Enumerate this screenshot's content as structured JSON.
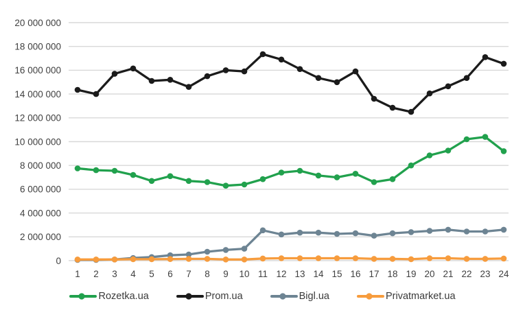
{
  "chart_data": {
    "type": "line",
    "title": "",
    "xlabel": "",
    "ylabel": "",
    "grid": "horizontal",
    "legend_position": "bottom-center",
    "x": [
      1,
      2,
      3,
      4,
      5,
      6,
      7,
      8,
      9,
      10,
      11,
      12,
      13,
      14,
      15,
      16,
      17,
      18,
      19,
      20,
      21,
      22,
      23,
      24
    ],
    "x_tick_labels": [
      "1",
      "2",
      "3",
      "4",
      "5",
      "6",
      "7",
      "8",
      "9",
      "10",
      "11",
      "12",
      "13",
      "14",
      "15",
      "16",
      "17",
      "18",
      "19",
      "20",
      "21",
      "22",
      "23",
      "24"
    ],
    "y_axis": {
      "min": 0,
      "max": 20000000,
      "step": 2000000,
      "tick_labels": [
        "0",
        "2 000 000",
        "4 000 000",
        "6 000 000",
        "8 000 000",
        "10 000 000",
        "12 000 000",
        "14 000 000",
        "16 000 000",
        "18 000 000",
        "20 000 000"
      ]
    },
    "series": [
      {
        "name": "Rozetka.ua",
        "color": "#21a14d",
        "marker": "circle",
        "values": [
          7750000,
          7600000,
          7550000,
          7200000,
          6700000,
          7100000,
          6700000,
          6600000,
          6300000,
          6400000,
          6850000,
          7400000,
          7550000,
          7150000,
          7000000,
          7300000,
          6600000,
          6850000,
          8000000,
          8850000,
          9250000,
          10200000,
          10400000,
          9200000
        ]
      },
      {
        "name": "Prom.ua",
        "color": "#1b1b1b",
        "marker": "circle",
        "values": [
          14350000,
          14000000,
          15700000,
          16150000,
          15100000,
          15200000,
          14600000,
          15500000,
          16000000,
          15900000,
          17350000,
          16900000,
          16100000,
          15350000,
          15000000,
          15900000,
          13600000,
          12850000,
          12500000,
          14050000,
          14650000,
          15350000,
          17100000,
          16550000
        ]
      },
      {
        "name": "Bigl.ua",
        "color": "#6d8493",
        "marker": "circle",
        "values": [
          60000,
          60000,
          100000,
          220000,
          300000,
          450000,
          520000,
          750000,
          900000,
          1000000,
          2550000,
          2200000,
          2350000,
          2350000,
          2250000,
          2300000,
          2100000,
          2300000,
          2400000,
          2500000,
          2600000,
          2450000,
          2450000,
          2600000
        ]
      },
      {
        "name": "Privatmarket.ua",
        "color": "#f79c3d",
        "marker": "circle",
        "values": [
          100000,
          100000,
          100000,
          120000,
          120000,
          130000,
          150000,
          150000,
          100000,
          100000,
          180000,
          200000,
          200000,
          200000,
          200000,
          200000,
          150000,
          150000,
          120000,
          200000,
          200000,
          150000,
          150000,
          180000
        ]
      }
    ]
  },
  "colors": {
    "background": "#ffffff",
    "gridline": "#d8d8d8",
    "axis_text": "#3f3f3f",
    "legend_text": "#3a3a3a"
  }
}
